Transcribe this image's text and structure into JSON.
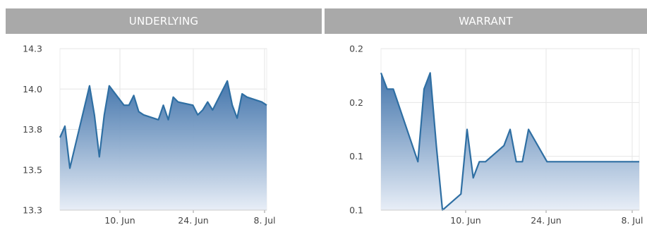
{
  "colors": {
    "header_bg": "#a9a9a9",
    "header_text": "#ffffff",
    "line": "#2f6fa3",
    "area_top": "#3b6fa8",
    "area_bottom": "#e8eef7",
    "grid": "#e6e6e6"
  },
  "chart_data": [
    {
      "type": "area",
      "title": "UNDERLYING",
      "xlabel": "",
      "ylabel": "",
      "x_ticks": [
        "10. Jun",
        "24. Jun",
        "8. Jul"
      ],
      "y_ticks": [
        "14.3",
        "14.0",
        "13.8",
        "13.5",
        "13.3"
      ],
      "ylim": [
        13.3,
        14.3
      ],
      "grid": true,
      "x": [
        "2024-05-28",
        "2024-05-29",
        "2024-05-30",
        "2024-06-03",
        "2024-06-04",
        "2024-06-05",
        "2024-06-06",
        "2024-06-07",
        "2024-06-10",
        "2024-06-11",
        "2024-06-12",
        "2024-06-13",
        "2024-06-14",
        "2024-06-17",
        "2024-06-18",
        "2024-06-19",
        "2024-06-20",
        "2024-06-21",
        "2024-06-24",
        "2024-06-25",
        "2024-06-26",
        "2024-06-27",
        "2024-06-28",
        "2024-07-01",
        "2024-07-02",
        "2024-07-03",
        "2024-07-04",
        "2024-07-05",
        "2024-07-08",
        "2024-07-09"
      ],
      "values": [
        13.75,
        13.82,
        13.56,
        14.07,
        13.89,
        13.63,
        13.89,
        14.07,
        13.95,
        13.95,
        14.01,
        13.91,
        13.89,
        13.86,
        13.95,
        13.86,
        14.0,
        13.97,
        13.95,
        13.89,
        13.92,
        13.97,
        13.92,
        14.1,
        13.95,
        13.87,
        14.02,
        14.0,
        13.97,
        13.95
      ]
    },
    {
      "type": "area",
      "title": "WARRANT",
      "xlabel": "",
      "ylabel": "",
      "x_ticks": [
        "10. Jun",
        "24. Jun",
        "8. Jul"
      ],
      "y_ticks": [
        "0.2",
        "0.2",
        "0.1",
        "0.1"
      ],
      "ylim": [
        0.1,
        0.2
      ],
      "grid": true,
      "x": [
        "2024-05-28",
        "2024-05-29",
        "2024-05-30",
        "2024-06-03",
        "2024-06-04",
        "2024-06-05",
        "2024-06-06",
        "2024-06-07",
        "2024-06-10",
        "2024-06-11",
        "2024-06-12",
        "2024-06-13",
        "2024-06-14",
        "2024-06-17",
        "2024-06-18",
        "2024-06-19",
        "2024-06-20",
        "2024-06-21",
        "2024-06-24",
        "2024-06-25",
        "2024-06-26",
        "2024-06-27",
        "2024-06-28",
        "2024-07-01",
        "2024-07-02",
        "2024-07-03",
        "2024-07-04",
        "2024-07-05",
        "2024-07-08",
        "2024-07-09"
      ],
      "values": [
        0.185,
        0.175,
        0.175,
        0.13,
        0.175,
        0.185,
        0.14,
        0.1,
        0.11,
        0.15,
        0.12,
        0.13,
        0.13,
        0.14,
        0.15,
        0.13,
        0.13,
        0.15,
        0.13,
        0.13,
        0.13,
        0.13,
        0.13,
        0.13,
        0.13,
        0.13,
        0.13,
        0.13,
        0.13,
        0.13
      ]
    }
  ]
}
